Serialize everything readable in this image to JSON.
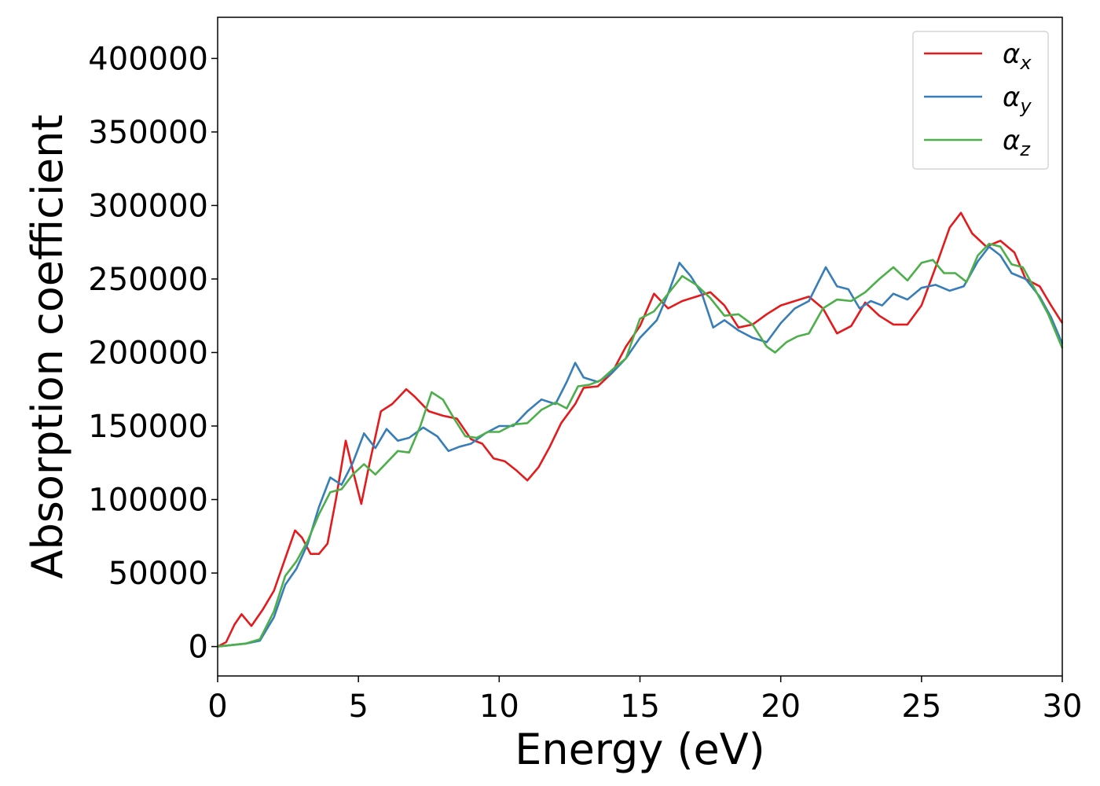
{
  "chart_data": {
    "type": "line",
    "title": "",
    "xlabel": "Energy (eV)",
    "ylabel": "Absorption coefficient",
    "xlim": [
      0,
      30
    ],
    "ylim": [
      -20000,
      428000
    ],
    "xticks": [
      0,
      5,
      10,
      15,
      20,
      25,
      30
    ],
    "yticks": [
      0,
      50000,
      100000,
      150000,
      200000,
      250000,
      300000,
      350000,
      400000
    ],
    "grid": false,
    "legend_position": "upper-right",
    "series": [
      {
        "name": "αx",
        "symbol": "α",
        "subscript": "x",
        "color": "#e41a1c",
        "points": [
          [
            0,
            0
          ],
          [
            0.3,
            3000
          ],
          [
            0.6,
            15000
          ],
          [
            0.85,
            22000
          ],
          [
            1.2,
            14000
          ],
          [
            1.6,
            25000
          ],
          [
            2.0,
            38000
          ],
          [
            2.4,
            60000
          ],
          [
            2.75,
            79000
          ],
          [
            3.0,
            74000
          ],
          [
            3.3,
            63000
          ],
          [
            3.6,
            63000
          ],
          [
            3.9,
            70000
          ],
          [
            4.2,
            100000
          ],
          [
            4.55,
            140000
          ],
          [
            4.8,
            120000
          ],
          [
            5.1,
            97000
          ],
          [
            5.4,
            125000
          ],
          [
            5.8,
            160000
          ],
          [
            6.2,
            165000
          ],
          [
            6.7,
            175000
          ],
          [
            7.0,
            170000
          ],
          [
            7.5,
            160000
          ],
          [
            8.0,
            157000
          ],
          [
            8.5,
            155000
          ],
          [
            9.0,
            141000
          ],
          [
            9.4,
            138000
          ],
          [
            9.8,
            128000
          ],
          [
            10.2,
            126000
          ],
          [
            10.6,
            120000
          ],
          [
            11.0,
            113000
          ],
          [
            11.4,
            122000
          ],
          [
            11.8,
            136000
          ],
          [
            12.2,
            152000
          ],
          [
            12.7,
            165000
          ],
          [
            13.0,
            176000
          ],
          [
            13.5,
            177000
          ],
          [
            14.0,
            186000
          ],
          [
            14.5,
            204000
          ],
          [
            15.0,
            218000
          ],
          [
            15.5,
            240000
          ],
          [
            16.0,
            230000
          ],
          [
            16.5,
            235000
          ],
          [
            17.0,
            238000
          ],
          [
            17.5,
            241000
          ],
          [
            18.0,
            232000
          ],
          [
            18.5,
            217000
          ],
          [
            19.0,
            219000
          ],
          [
            19.5,
            226000
          ],
          [
            20.0,
            232000
          ],
          [
            20.5,
            235000
          ],
          [
            21.0,
            238000
          ],
          [
            21.5,
            230000
          ],
          [
            22.0,
            213000
          ],
          [
            22.5,
            218000
          ],
          [
            23.0,
            234000
          ],
          [
            23.5,
            225000
          ],
          [
            24.0,
            219000
          ],
          [
            24.5,
            219000
          ],
          [
            25.0,
            232000
          ],
          [
            25.5,
            258000
          ],
          [
            26.0,
            285000
          ],
          [
            26.4,
            295000
          ],
          [
            26.8,
            281000
          ],
          [
            27.3,
            272000
          ],
          [
            27.8,
            276000
          ],
          [
            28.3,
            268000
          ],
          [
            28.7,
            250000
          ],
          [
            29.2,
            245000
          ],
          [
            29.6,
            232000
          ],
          [
            30.0,
            220000
          ]
        ]
      },
      {
        "name": "αy",
        "symbol": "α",
        "subscript": "y",
        "color": "#377eb8",
        "points": [
          [
            0,
            0
          ],
          [
            0.5,
            1000
          ],
          [
            1.0,
            2000
          ],
          [
            1.5,
            4000
          ],
          [
            2.0,
            20000
          ],
          [
            2.4,
            42000
          ],
          [
            2.8,
            53000
          ],
          [
            3.2,
            70000
          ],
          [
            3.6,
            95000
          ],
          [
            4.0,
            115000
          ],
          [
            4.4,
            110000
          ],
          [
            4.8,
            125000
          ],
          [
            5.2,
            145000
          ],
          [
            5.6,
            135000
          ],
          [
            6.0,
            148000
          ],
          [
            6.4,
            140000
          ],
          [
            6.8,
            142000
          ],
          [
            7.3,
            149000
          ],
          [
            7.8,
            143000
          ],
          [
            8.2,
            133000
          ],
          [
            8.6,
            136000
          ],
          [
            9.0,
            138000
          ],
          [
            9.5,
            145000
          ],
          [
            10.0,
            150000
          ],
          [
            10.5,
            150000
          ],
          [
            11.0,
            160000
          ],
          [
            11.5,
            168000
          ],
          [
            12.0,
            165000
          ],
          [
            12.4,
            180000
          ],
          [
            12.7,
            193000
          ],
          [
            13.0,
            183000
          ],
          [
            13.5,
            180000
          ],
          [
            14.0,
            186000
          ],
          [
            14.5,
            196000
          ],
          [
            15.0,
            210000
          ],
          [
            15.6,
            222000
          ],
          [
            16.0,
            240000
          ],
          [
            16.4,
            261000
          ],
          [
            16.8,
            252000
          ],
          [
            17.2,
            240000
          ],
          [
            17.6,
            217000
          ],
          [
            18.0,
            222000
          ],
          [
            18.5,
            215000
          ],
          [
            19.0,
            210000
          ],
          [
            19.5,
            207000
          ],
          [
            20.0,
            220000
          ],
          [
            20.5,
            230000
          ],
          [
            21.0,
            235000
          ],
          [
            21.6,
            258000
          ],
          [
            22.0,
            245000
          ],
          [
            22.4,
            243000
          ],
          [
            22.8,
            230000
          ],
          [
            23.2,
            235000
          ],
          [
            23.6,
            232000
          ],
          [
            24.0,
            240000
          ],
          [
            24.5,
            236000
          ],
          [
            25.0,
            244000
          ],
          [
            25.5,
            246000
          ],
          [
            26.0,
            242000
          ],
          [
            26.5,
            245000
          ],
          [
            27.0,
            262000
          ],
          [
            27.4,
            272000
          ],
          [
            27.8,
            266000
          ],
          [
            28.2,
            254000
          ],
          [
            28.7,
            250000
          ],
          [
            29.2,
            238000
          ],
          [
            29.6,
            224000
          ],
          [
            30.0,
            206000
          ]
        ]
      },
      {
        "name": "αz",
        "symbol": "α",
        "subscript": "z",
        "color": "#4daf4a",
        "points": [
          [
            0,
            0
          ],
          [
            0.5,
            1000
          ],
          [
            1.0,
            2000
          ],
          [
            1.5,
            5000
          ],
          [
            2.0,
            24000
          ],
          [
            2.4,
            48000
          ],
          [
            2.8,
            58000
          ],
          [
            3.2,
            72000
          ],
          [
            3.6,
            90000
          ],
          [
            4.0,
            105000
          ],
          [
            4.4,
            107000
          ],
          [
            4.8,
            117000
          ],
          [
            5.2,
            124000
          ],
          [
            5.6,
            117000
          ],
          [
            6.0,
            125000
          ],
          [
            6.4,
            133000
          ],
          [
            6.8,
            132000
          ],
          [
            7.2,
            150000
          ],
          [
            7.6,
            173000
          ],
          [
            8.0,
            168000
          ],
          [
            8.4,
            155000
          ],
          [
            8.8,
            143000
          ],
          [
            9.2,
            142000
          ],
          [
            9.6,
            146000
          ],
          [
            10.0,
            146000
          ],
          [
            10.5,
            151000
          ],
          [
            11.0,
            152000
          ],
          [
            11.5,
            161000
          ],
          [
            12.0,
            166000
          ],
          [
            12.4,
            162000
          ],
          [
            12.8,
            177000
          ],
          [
            13.2,
            178000
          ],
          [
            13.6,
            181000
          ],
          [
            14.0,
            188000
          ],
          [
            14.5,
            196000
          ],
          [
            15.0,
            223000
          ],
          [
            15.5,
            228000
          ],
          [
            16.0,
            240000
          ],
          [
            16.5,
            252000
          ],
          [
            17.0,
            246000
          ],
          [
            17.5,
            237000
          ],
          [
            18.0,
            225000
          ],
          [
            18.5,
            226000
          ],
          [
            19.0,
            219000
          ],
          [
            19.5,
            204000
          ],
          [
            19.8,
            200000
          ],
          [
            20.2,
            207000
          ],
          [
            20.6,
            211000
          ],
          [
            21.0,
            213000
          ],
          [
            21.5,
            230000
          ],
          [
            22.0,
            236000
          ],
          [
            22.5,
            235000
          ],
          [
            23.0,
            241000
          ],
          [
            23.5,
            250000
          ],
          [
            24.0,
            258000
          ],
          [
            24.5,
            249000
          ],
          [
            25.0,
            261000
          ],
          [
            25.4,
            263000
          ],
          [
            25.8,
            254000
          ],
          [
            26.2,
            254000
          ],
          [
            26.6,
            248000
          ],
          [
            27.0,
            266000
          ],
          [
            27.4,
            274000
          ],
          [
            27.8,
            272000
          ],
          [
            28.2,
            260000
          ],
          [
            28.6,
            258000
          ],
          [
            29.0,
            244000
          ],
          [
            29.5,
            226000
          ],
          [
            30.0,
            203000
          ]
        ]
      }
    ]
  }
}
